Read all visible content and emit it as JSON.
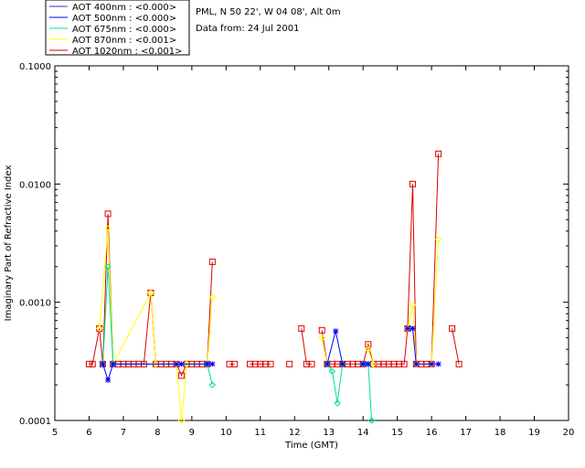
{
  "legend": [
    {
      "label": "AOT  400nm : <0.000>",
      "color": "#2b2bd6"
    },
    {
      "label": "AOT  500nm : <0.000>",
      "color": "#0000ff"
    },
    {
      "label": "AOT  675nm : <0.000>",
      "color": "#00e08a"
    },
    {
      "label": "AOT  870nm : <0.001>",
      "color": "#ffff00"
    },
    {
      "label": "AOT 1020nm : <0.001>",
      "color": "#dd0000"
    }
  ],
  "info": {
    "line1": "PML, N 50 22', W 04 08', Alt 0m",
    "line2": "Data from: 24 Jul 2001"
  },
  "chart_data": {
    "type": "line",
    "xlabel": "Time (GMT)",
    "ylabel": "Imaginary Part of Refractive Index",
    "xlim": [
      5,
      20
    ],
    "ylim": [
      0.0001,
      0.1
    ],
    "yscale": "log",
    "xticks": [
      "5",
      "6",
      "7",
      "8",
      "9",
      "10",
      "11",
      "12",
      "13",
      "14",
      "15",
      "16",
      "17",
      "18",
      "19",
      "20"
    ],
    "yticks": [
      "0.0001",
      "0.0010",
      "0.0100",
      "0.1000"
    ],
    "series": [
      {
        "name": "AOT 1020nm",
        "color": "#dd0000",
        "marker": "square",
        "segments": [
          [
            [
              6.0,
              0.0003
            ],
            [
              6.1,
              0.0003
            ],
            [
              6.3,
              0.0006
            ],
            [
              6.4,
              0.0003
            ],
            [
              6.55,
              0.0056
            ],
            [
              6.7,
              0.0003
            ],
            [
              6.85,
              0.0003
            ],
            [
              7.0,
              0.0003
            ],
            [
              7.15,
              0.0003
            ],
            [
              7.3,
              0.0003
            ],
            [
              7.45,
              0.0003
            ],
            [
              7.6,
              0.0003
            ],
            [
              7.8,
              0.0012
            ],
            [
              7.95,
              0.0003
            ],
            [
              8.1,
              0.0003
            ],
            [
              8.25,
              0.0003
            ],
            [
              8.4,
              0.0003
            ],
            [
              8.55,
              0.0003
            ],
            [
              8.7,
              0.00024
            ],
            [
              8.85,
              0.0003
            ],
            [
              9.0,
              0.0003
            ],
            [
              9.15,
              0.0003
            ],
            [
              9.3,
              0.0003
            ],
            [
              9.45,
              0.0003
            ],
            [
              9.6,
              0.0022
            ]
          ],
          [
            [
              10.1,
              0.0003
            ],
            [
              10.25,
              0.0003
            ]
          ],
          [
            [
              10.7,
              0.0003
            ],
            [
              10.85,
              0.0003
            ],
            [
              11.0,
              0.0003
            ],
            [
              11.15,
              0.0003
            ],
            [
              11.3,
              0.0003
            ]
          ],
          [
            [
              11.85,
              0.0003
            ]
          ],
          [
            [
              12.2,
              0.0006
            ],
            [
              12.35,
              0.0003
            ],
            [
              12.5,
              0.0003
            ]
          ],
          [
            [
              12.8,
              0.00058
            ],
            [
              12.95,
              0.0003
            ],
            [
              13.1,
              0.0003
            ],
            [
              13.25,
              0.0003
            ],
            [
              13.4,
              0.0003
            ],
            [
              13.55,
              0.0003
            ],
            [
              13.7,
              0.0003
            ],
            [
              13.85,
              0.0003
            ],
            [
              14.0,
              0.0003
            ],
            [
              14.15,
              0.00044
            ],
            [
              14.3,
              0.0003
            ],
            [
              14.45,
              0.0003
            ],
            [
              14.6,
              0.0003
            ],
            [
              14.75,
              0.0003
            ],
            [
              14.9,
              0.0003
            ],
            [
              15.05,
              0.0003
            ],
            [
              15.2,
              0.0003
            ],
            [
              15.3,
              0.0006
            ],
            [
              15.45,
              0.01
            ],
            [
              15.55,
              0.0003
            ],
            [
              15.7,
              0.0003
            ],
            [
              15.85,
              0.0003
            ],
            [
              16.0,
              0.0003
            ],
            [
              16.2,
              0.018
            ]
          ],
          [
            [
              16.6,
              0.0006
            ],
            [
              16.8,
              0.0003
            ]
          ]
        ]
      },
      {
        "name": "AOT 870nm",
        "color": "#ffff00",
        "marker": "diamond",
        "segments": [
          [
            [
              6.3,
              0.0006
            ],
            [
              6.55,
              0.0042
            ],
            [
              6.7,
              0.0003
            ],
            [
              7.8,
              0.0012
            ],
            [
              7.95,
              0.0003
            ],
            [
              8.55,
              0.0003
            ],
            [
              8.7,
              0.0001
            ],
            [
              8.85,
              0.0003
            ],
            [
              9.45,
              0.0003
            ],
            [
              9.6,
              0.0011
            ]
          ],
          [
            [
              12.8,
              0.0005
            ],
            [
              12.95,
              0.0003
            ]
          ],
          [
            [
              14.15,
              0.0004
            ],
            [
              14.3,
              0.0003
            ]
          ],
          [
            [
              15.3,
              0.0006
            ],
            [
              15.45,
              0.00095
            ],
            [
              15.55,
              0.0003
            ],
            [
              16.0,
              0.0003
            ],
            [
              16.2,
              0.0034
            ]
          ]
        ]
      },
      {
        "name": "AOT 675nm",
        "color": "#00e08a",
        "marker": "diamond",
        "segments": [
          [
            [
              6.4,
              0.0003
            ],
            [
              6.55,
              0.002
            ],
            [
              6.7,
              0.0003
            ],
            [
              9.45,
              0.0003
            ],
            [
              9.6,
              0.0002
            ]
          ],
          [
            [
              12.95,
              0.0003
            ],
            [
              13.1,
              0.00026
            ],
            [
              13.25,
              0.00014
            ],
            [
              13.4,
              0.0003
            ]
          ],
          [
            [
              14.0,
              0.0003
            ],
            [
              14.15,
              0.0003
            ],
            [
              14.25,
              7e-05
            ]
          ]
        ]
      },
      {
        "name": "AOT 500nm",
        "color": "#0000ff",
        "marker": "asterisk",
        "segments": [
          [
            [
              6.4,
              0.0003
            ],
            [
              6.55,
              0.00022
            ],
            [
              6.7,
              0.0003
            ],
            [
              8.55,
              0.0003
            ],
            [
              8.7,
              0.0003
            ],
            [
              9.45,
              0.0003
            ],
            [
              9.6,
              0.0003
            ]
          ],
          [
            [
              12.95,
              0.0003
            ],
            [
              13.2,
              0.00057
            ],
            [
              13.4,
              0.0003
            ]
          ],
          [
            [
              14.0,
              0.0003
            ],
            [
              14.15,
              0.0003
            ]
          ],
          [
            [
              15.3,
              0.0006
            ],
            [
              15.45,
              0.0006
            ],
            [
              15.55,
              0.0003
            ],
            [
              16.0,
              0.0003
            ],
            [
              16.2,
              0.0003
            ]
          ]
        ]
      }
    ]
  }
}
